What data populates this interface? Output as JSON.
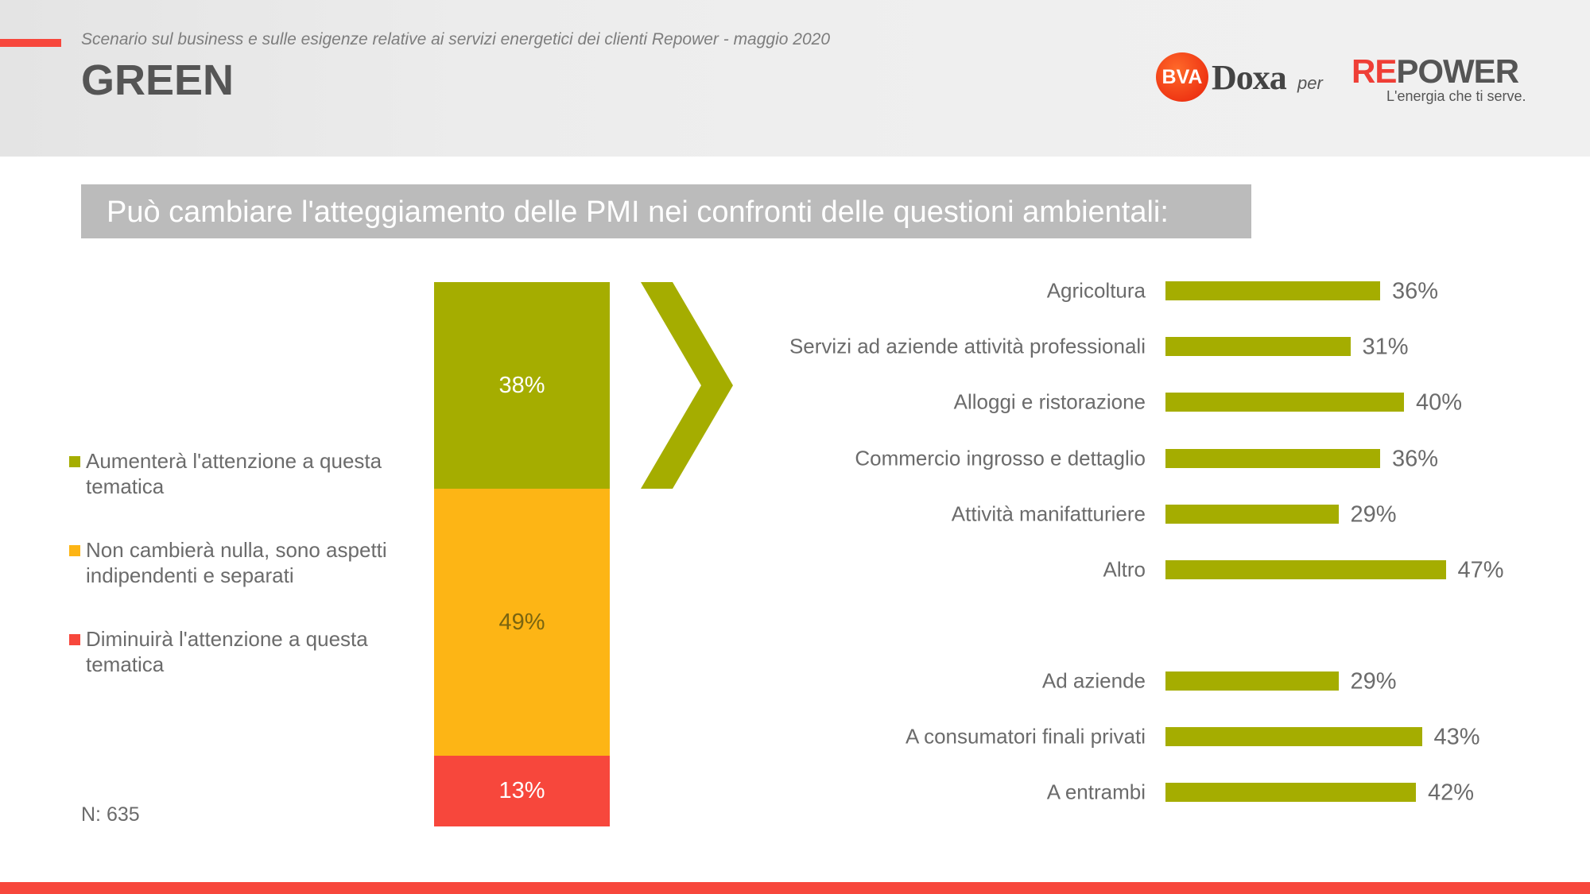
{
  "header": {
    "subtitle": "Scenario sul business e sulle esigenze relative ai servizi energetici dei clienti Repower - maggio 2020",
    "section": "GREEN",
    "logos": {
      "bva": "BVA",
      "doxa": "Doxa",
      "per": "per",
      "repower_re": "RE",
      "repower_rest": "POWER",
      "repower_tagline": "L'energia che ti serve."
    }
  },
  "question": "Può cambiare l'atteggiamento delle PMI nei confronti delle questioni ambientali:",
  "colors": {
    "green": "#a5ad00",
    "yellow": "#fdb515",
    "red": "#f7473c",
    "question_bg": "#bbbbbb"
  },
  "sample": "N: 635",
  "chart_data": [
    {
      "type": "bar",
      "stacked": true,
      "orientation": "vertical",
      "series": [
        {
          "name": "Aumenterà l'attenzione a questa tematica",
          "value": 38,
          "label": "38%",
          "color": "#a5ad00"
        },
        {
          "name": "Non cambierà nulla, sono aspetti indipendenti e separati",
          "value": 49,
          "label": "49%",
          "color": "#fdb515"
        },
        {
          "name": "Diminuirà l'attenzione a questa tematica",
          "value": 13,
          "label": "13%",
          "color": "#f7473c"
        }
      ],
      "legend_position": "left"
    },
    {
      "type": "bar",
      "orientation": "horizontal",
      "groups": [
        {
          "categories": [
            "Agricoltura",
            "Servizi ad aziende attività professionali",
            "Alloggi e ristorazione",
            "Commercio ingrosso e dettaglio",
            "Attività manifatturiere",
            "Altro"
          ],
          "values": [
            36,
            31,
            40,
            36,
            29,
            47
          ],
          "labels": [
            "36%",
            "31%",
            "40%",
            "36%",
            "29%",
            "47%"
          ]
        },
        {
          "categories": [
            "Ad aziende",
            "A consumatori finali privati",
            "A entrambi"
          ],
          "values": [
            29,
            43,
            42
          ],
          "labels": [
            "29%",
            "43%",
            "42%"
          ]
        }
      ],
      "color": "#a5ad00"
    }
  ]
}
